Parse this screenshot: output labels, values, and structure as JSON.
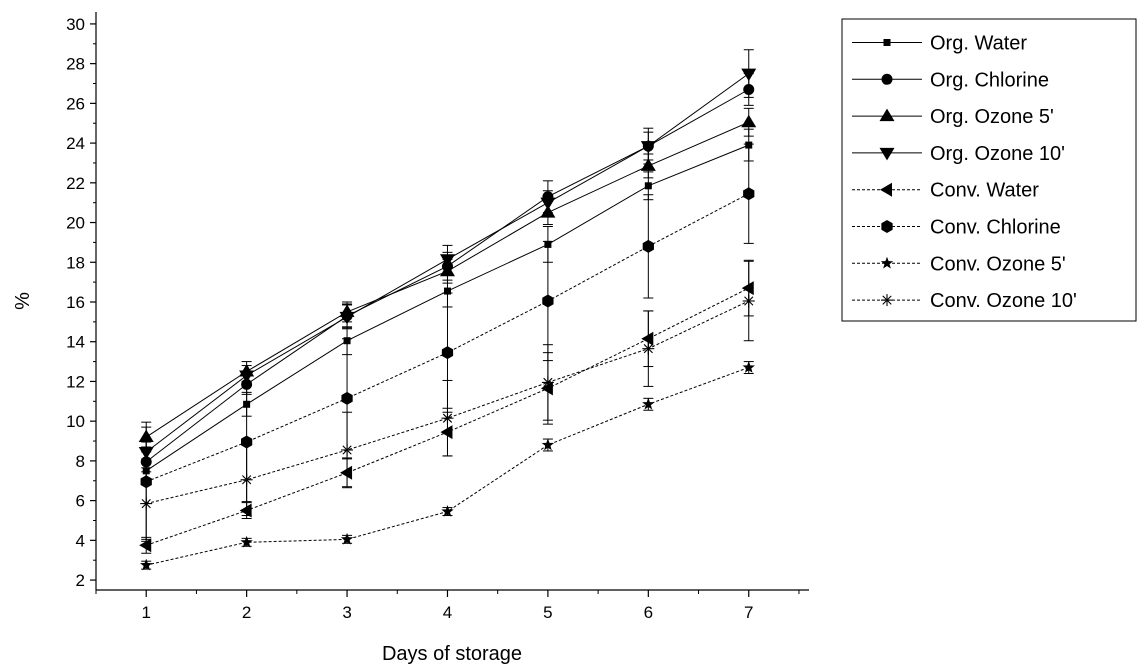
{
  "chart_data": {
    "type": "line",
    "title": "",
    "xlabel": "Days of storage",
    "ylabel": "%",
    "x": [
      1,
      2,
      3,
      4,
      5,
      6,
      7
    ],
    "xlim": [
      0.5,
      7.6
    ],
    "ylim": [
      1.5,
      30.6
    ],
    "x_ticks": [
      1,
      2,
      3,
      4,
      5,
      6,
      7
    ],
    "y_ticks": [
      2,
      4,
      6,
      8,
      10,
      12,
      14,
      16,
      18,
      20,
      22,
      24,
      26,
      28,
      30
    ],
    "grid": false,
    "legend_position": "top-right, outside plot area",
    "series": [
      {
        "name": "Org. Water",
        "marker": "square",
        "line": "solid",
        "values": [
          7.5,
          10.85,
          14.05,
          16.55,
          18.9,
          21.85,
          23.9
        ],
        "error": [
          0.6,
          0.6,
          0.7,
          0.8,
          0.9,
          0.7,
          0.8
        ]
      },
      {
        "name": "Org. Chlorine",
        "marker": "circle",
        "line": "solid",
        "values": [
          7.95,
          11.85,
          15.3,
          17.8,
          21.3,
          23.85,
          26.7
        ],
        "error": [
          0.5,
          0.5,
          0.6,
          0.7,
          0.8,
          0.7,
          0.8
        ]
      },
      {
        "name": "Org. Ozone 5'",
        "marker": "triangle-up",
        "line": "solid",
        "values": [
          9.2,
          12.5,
          15.5,
          17.55,
          20.5,
          22.85,
          25.05
        ],
        "error": [
          0.5,
          0.5,
          0.5,
          0.6,
          0.6,
          0.6,
          0.7
        ]
      },
      {
        "name": "Org. Ozone 10'",
        "marker": "triangle-down",
        "line": "solid",
        "values": [
          8.45,
          12.3,
          15.25,
          18.15,
          21.0,
          23.85,
          27.5
        ],
        "error": [
          0.5,
          0.5,
          0.6,
          0.7,
          0.6,
          0.9,
          1.2
        ]
      },
      {
        "name": "Conv. Water",
        "marker": "triangle-left",
        "line": "dotted",
        "values": [
          3.75,
          5.5,
          7.4,
          9.45,
          11.65,
          14.15,
          16.7
        ],
        "error": [
          0.4,
          0.4,
          0.7,
          1.2,
          1.8,
          1.4,
          1.4
        ]
      },
      {
        "name": "Conv. Chlorine",
        "marker": "hexagon",
        "line": "dotted",
        "values": [
          6.95,
          8.95,
          11.15,
          13.45,
          16.05,
          18.8,
          21.45
        ],
        "error": [
          3.0,
          3.0,
          3.0,
          3.0,
          3.0,
          2.6,
          2.5
        ]
      },
      {
        "name": "Conv. Ozone 5'",
        "marker": "star",
        "line": "dotted",
        "values": [
          2.75,
          3.9,
          4.05,
          5.45,
          8.8,
          10.85,
          12.7
        ],
        "error": [
          0.2,
          0.2,
          0.2,
          0.2,
          0.3,
          0.3,
          0.3
        ]
      },
      {
        "name": "Conv. Ozone 10'",
        "marker": "asterisk",
        "line": "dotted",
        "values": [
          5.85,
          7.05,
          8.55,
          10.15,
          11.95,
          13.65,
          16.05
        ],
        "error": [
          1.8,
          1.8,
          1.9,
          1.9,
          1.9,
          1.9,
          2.0
        ]
      }
    ]
  }
}
